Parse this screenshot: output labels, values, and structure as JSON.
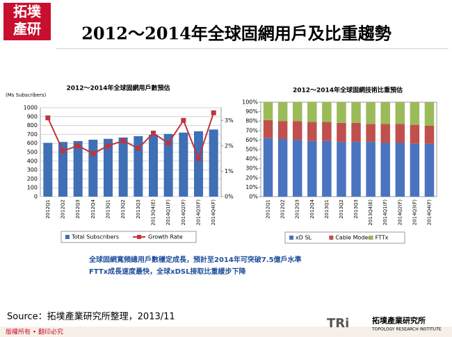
{
  "logo": {
    "line1": "拓墣",
    "line2": "產研"
  },
  "title": "2012～2014年全球固網用戶及比重趨勢",
  "chart_data": [
    {
      "type": "bar",
      "title": "2012～2014年全球固網用戶數預估",
      "y_label": "(Ms Subscribers)",
      "categories": [
        "2012Q1",
        "2012Q2",
        "2012Q3",
        "2012Q4",
        "2013Q1",
        "2013Q2",
        "2013Q3",
        "2013Q4(E)",
        "2014Q1(F)",
        "2014Q2(F)",
        "2014Q3(F)",
        "2014Q4(F)"
      ],
      "series": [
        {
          "name": "Total Subscribers",
          "type": "bar",
          "color": "#3f6fb5",
          "values": [
            605,
            615,
            625,
            640,
            650,
            665,
            680,
            695,
            705,
            720,
            735,
            755
          ]
        },
        {
          "name": "Growth Rate",
          "type": "line",
          "axis": "y2",
          "color": "#c0343c",
          "values": [
            3.1,
            1.8,
            2.0,
            1.7,
            2.0,
            2.2,
            1.9,
            2.5,
            2.1,
            3.0,
            1.5,
            3.3
          ]
        }
      ],
      "ylim": [
        0,
        1000
      ],
      "yticks": [
        0,
        100,
        200,
        300,
        400,
        500,
        600,
        700,
        800,
        900,
        1000
      ],
      "y2lim": [
        0,
        3.5
      ],
      "y2ticks": [
        {
          "value": 0,
          "label": "0%"
        },
        {
          "value": 1,
          "label": "1%"
        },
        {
          "value": 2,
          "label": "2%"
        },
        {
          "value": 3,
          "label": "3%"
        }
      ],
      "grid": true
    },
    {
      "type": "stacked_bar",
      "title": "2012～2014年全球固網技術比重預估",
      "categories": [
        "2012Q1",
        "2012Q2",
        "2012Q3",
        "2012Q4",
        "2013Q1",
        "2013Q2",
        "2013Q3",
        "2013Q4(E)",
        "2014Q1(F)",
        "2014Q2(F)",
        "2014Q3(F)",
        "2014Q4(F)"
      ],
      "series": [
        {
          "name": "xD SL",
          "color": "#4a74c0",
          "values": [
            62,
            61,
            60,
            59,
            59,
            58,
            58,
            58,
            57,
            57,
            56,
            56
          ]
        },
        {
          "name": "Cable Modem",
          "color": "#c0504d",
          "values": [
            19,
            19,
            20,
            20,
            20,
            20,
            20,
            19,
            20,
            20,
            20,
            19
          ]
        },
        {
          "name": "FTTx",
          "color": "#9bbb59",
          "values": [
            19,
            20,
            20,
            21,
            21,
            22,
            22,
            23,
            23,
            23,
            24,
            25
          ]
        }
      ],
      "ylim": [
        0,
        100
      ],
      "yticks": [
        {
          "value": 0,
          "label": "0%"
        },
        {
          "value": 10,
          "label": "10%"
        },
        {
          "value": 20,
          "label": "20%"
        },
        {
          "value": 30,
          "label": "30%"
        },
        {
          "value": 40,
          "label": "40%"
        },
        {
          "value": 50,
          "label": "50%"
        },
        {
          "value": 60,
          "label": "60%"
        },
        {
          "value": 70,
          "label": "70%"
        },
        {
          "value": 80,
          "label": "80%"
        },
        {
          "value": 90,
          "label": "90%"
        },
        {
          "value": 100,
          "label": "100%"
        }
      ],
      "grid": false
    }
  ],
  "caption": [
    "全球固網寬頻總用戶數穩定成長，預計至2014年可突破7.5億戶水準",
    "FTTx成長速度最快，全球xDSL接取比重緩步下降"
  ],
  "source": "Source：拓墣產業研究所整理，2013/11",
  "footer": "版權所有 • 翻印必究",
  "brand": {
    "mark": "TRi",
    "name": "拓墣產業研究所",
    "english": "TOPOLOGY RESEARCH INSTITUTE"
  }
}
